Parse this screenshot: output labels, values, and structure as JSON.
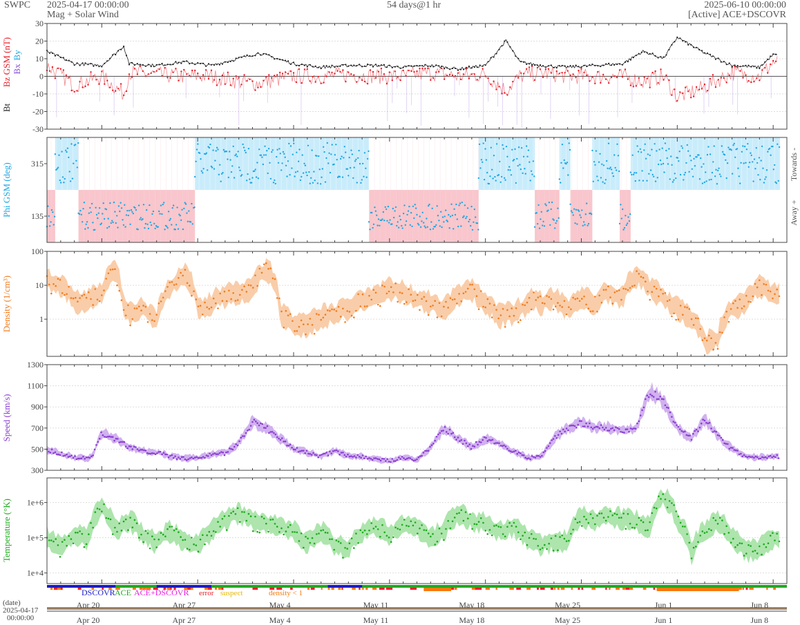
{
  "header": {
    "org": "SWPC",
    "start_time": "2025-04-17 00:00:00",
    "product": "Mag + Solar Wind",
    "duration": "54 days@1 hr",
    "end_time": "2025-06-10 00:00:00",
    "source": "[Active] ACE+DSCOVR"
  },
  "colors": {
    "bt": "#222222",
    "bz": "#e8202a",
    "bx": "#8a4fd6",
    "by": "#1ea7e3",
    "phi_towards": "#c9ecfb",
    "phi_away": "#f8c6cc",
    "phi_point": "#1ea7e3",
    "density": "#ef7e23",
    "density_band": "#f8c49a",
    "speed": "#8a3fd0",
    "speed_band": "#c9a3ec",
    "temperature": "#1faa1f",
    "temperature_band": "#9fe09f",
    "source_dscovr": "#1a1acc",
    "source_ace": "#1faa1f",
    "source_active": "#e81ee0",
    "flag_error": "#e8202a",
    "flag_suspect": "#e6b800",
    "flag_density": "#f47a10"
  },
  "chart_data": [
    {
      "type": "line",
      "panel": "magnetic-field",
      "ylabel_parts": [
        "Bt",
        "Bz GSM (nT)",
        "Bx",
        "By"
      ],
      "ylim": [
        -30,
        30
      ],
      "yticks": [
        "30",
        "20",
        "10",
        "0",
        "-10",
        "-20",
        "-30"
      ],
      "x_days": [
        0,
        2,
        4,
        5.6,
        6,
        8,
        10,
        12,
        14,
        15.5,
        18,
        20,
        22,
        24,
        26,
        28,
        30,
        32,
        33.5,
        34.5,
        36,
        38,
        40,
        42,
        43.5,
        45,
        46,
        48,
        50,
        52,
        53
      ],
      "series": [
        {
          "name": "Bt",
          "values": [
            14,
            7,
            6,
            17,
            7,
            6,
            8,
            6,
            10,
            13,
            7,
            5,
            6,
            6,
            5,
            6,
            4,
            6,
            20,
            8,
            6,
            5,
            6,
            7,
            14,
            10,
            22,
            13,
            6,
            5,
            12
          ]
        },
        {
          "name": "Bz",
          "values": [
            6,
            -5,
            0,
            -10,
            2,
            1,
            0,
            0,
            -3,
            -4,
            0,
            0,
            1,
            0,
            0,
            2,
            0,
            1,
            -8,
            0,
            2,
            0,
            0,
            0,
            -3,
            0,
            -12,
            -6,
            2,
            0,
            8
          ]
        }
      ]
    },
    {
      "type": "scatter",
      "panel": "phi-angle",
      "ylabel": "Phi GSM (deg)",
      "right_labels": [
        "Towards -",
        "Away +"
      ],
      "yticks": [
        "315",
        "135"
      ],
      "sectors": [
        {
          "from": 0,
          "to": 0.6,
          "sign": "away"
        },
        {
          "from": 0.6,
          "to": 2.3,
          "sign": "towards"
        },
        {
          "from": 2.3,
          "to": 10.8,
          "sign": "away"
        },
        {
          "from": 10.8,
          "to": 23.5,
          "sign": "towards"
        },
        {
          "from": 23.5,
          "to": 31.5,
          "sign": "away"
        },
        {
          "from": 31.5,
          "to": 35.6,
          "sign": "towards"
        },
        {
          "from": 35.6,
          "to": 37.4,
          "sign": "away"
        },
        {
          "from": 37.4,
          "to": 38.2,
          "sign": "towards"
        },
        {
          "from": 38.2,
          "to": 39.8,
          "sign": "away"
        },
        {
          "from": 39.8,
          "to": 41.8,
          "sign": "towards"
        },
        {
          "from": 41.8,
          "to": 42.6,
          "sign": "away"
        },
        {
          "from": 42.6,
          "to": 53.5,
          "sign": "towards"
        }
      ]
    },
    {
      "type": "line",
      "panel": "density",
      "ylabel": "Density (1/cm³)",
      "scale": "log",
      "ylim": [
        0.08,
        100
      ],
      "yticks": [
        "100",
        "10",
        "1"
      ],
      "x_days": [
        0,
        1,
        2,
        3,
        4,
        5,
        5.5,
        6,
        7,
        8,
        9,
        10,
        11,
        12,
        13,
        14,
        15,
        16,
        17,
        18,
        19,
        20,
        21,
        22,
        23,
        24,
        25,
        26,
        27,
        28,
        29,
        30,
        31,
        32,
        33,
        34,
        35,
        35.5,
        36,
        37,
        38,
        39,
        40,
        41,
        42,
        43,
        44,
        45,
        46,
        47,
        48,
        49,
        50,
        51,
        52,
        53
      ],
      "values": [
        14,
        10,
        3,
        4,
        6,
        25,
        3,
        1.5,
        2,
        0.9,
        8,
        20,
        2,
        3,
        5,
        6,
        8,
        30,
        1.5,
        0.7,
        0.6,
        1.2,
        1.4,
        2,
        4,
        5,
        8,
        6,
        4,
        3,
        2,
        5,
        7,
        3,
        1.2,
        1.5,
        2.5,
        4,
        3,
        4,
        2,
        4,
        3,
        6,
        4,
        20,
        8,
        4,
        2,
        1.2,
        0.2,
        0.25,
        2,
        3,
        10,
        5
      ]
    },
    {
      "type": "line",
      "panel": "speed",
      "ylabel": "Speed (km/s)",
      "ylim": [
        300,
        1300
      ],
      "yticks": [
        "1300",
        "1100",
        "900",
        "700",
        "500",
        "300"
      ],
      "x_days": [
        0,
        1,
        2,
        3,
        3.3,
        4,
        5,
        6,
        7,
        8,
        9,
        10,
        11,
        12,
        13,
        14,
        15,
        16,
        17,
        18,
        19,
        20,
        21,
        22,
        23,
        24,
        25,
        26,
        27,
        28,
        29,
        30,
        31,
        32,
        33,
        34,
        34.5,
        35,
        36,
        37,
        38,
        39,
        40,
        41,
        42,
        43,
        44,
        45,
        46,
        47,
        48,
        49,
        50,
        51,
        52,
        53
      ],
      "values": [
        490,
        460,
        420,
        410,
        430,
        650,
        600,
        520,
        480,
        470,
        430,
        410,
        420,
        450,
        460,
        560,
        760,
        700,
        600,
        500,
        470,
        430,
        480,
        440,
        430,
        400,
        390,
        420,
        400,
        520,
        700,
        600,
        520,
        600,
        560,
        480,
        450,
        420,
        420,
        600,
        700,
        750,
        700,
        700,
        680,
        700,
        1050,
        950,
        700,
        600,
        780,
        620,
        500,
        430,
        420,
        430
      ]
    },
    {
      "type": "line",
      "panel": "temperature",
      "ylabel": "Temperature (°K)",
      "scale": "log",
      "ylim": [
        5000,
        5000000
      ],
      "yticks": [
        "1e+6",
        "1e+5",
        "1e+4"
      ],
      "x_days": [
        0,
        1,
        2,
        3,
        4,
        4.5,
        5,
        6,
        7,
        8,
        9,
        10,
        11,
        12,
        13,
        14,
        15,
        16,
        17,
        18,
        19,
        20,
        21,
        22,
        23,
        24,
        25,
        26,
        27,
        28,
        29,
        30,
        31,
        32,
        33,
        34,
        35,
        36,
        37,
        38,
        39,
        40,
        41,
        42,
        43,
        44,
        45,
        46,
        47,
        48,
        49,
        50,
        51,
        52,
        53
      ],
      "values": [
        100000,
        50000,
        120000,
        90000,
        700000,
        400000,
        150000,
        300000,
        120000,
        70000,
        150000,
        80000,
        60000,
        150000,
        300000,
        500000,
        300000,
        250000,
        200000,
        150000,
        70000,
        150000,
        60000,
        50000,
        150000,
        200000,
        120000,
        250000,
        200000,
        100000,
        150000,
        500000,
        300000,
        250000,
        150000,
        200000,
        100000,
        60000,
        80000,
        80000,
        400000,
        300000,
        400000,
        350000,
        300000,
        200000,
        1500000,
        300000,
        30000,
        150000,
        300000,
        100000,
        40000,
        50000,
        100000
      ]
    }
  ],
  "bottom": {
    "legend": [
      "DSCOVR",
      "ACE",
      "ACE+DSCOVR",
      "error",
      "suspect",
      "density < 1"
    ],
    "date_label": "(date)",
    "start_date": "2025-04-17",
    "start_clock": "00:00:00",
    "date_ticks": [
      "Apr 20",
      "Apr 27",
      "May 4",
      "May 11",
      "May 18",
      "May 25",
      "Jun 1",
      "Jun 8"
    ]
  }
}
